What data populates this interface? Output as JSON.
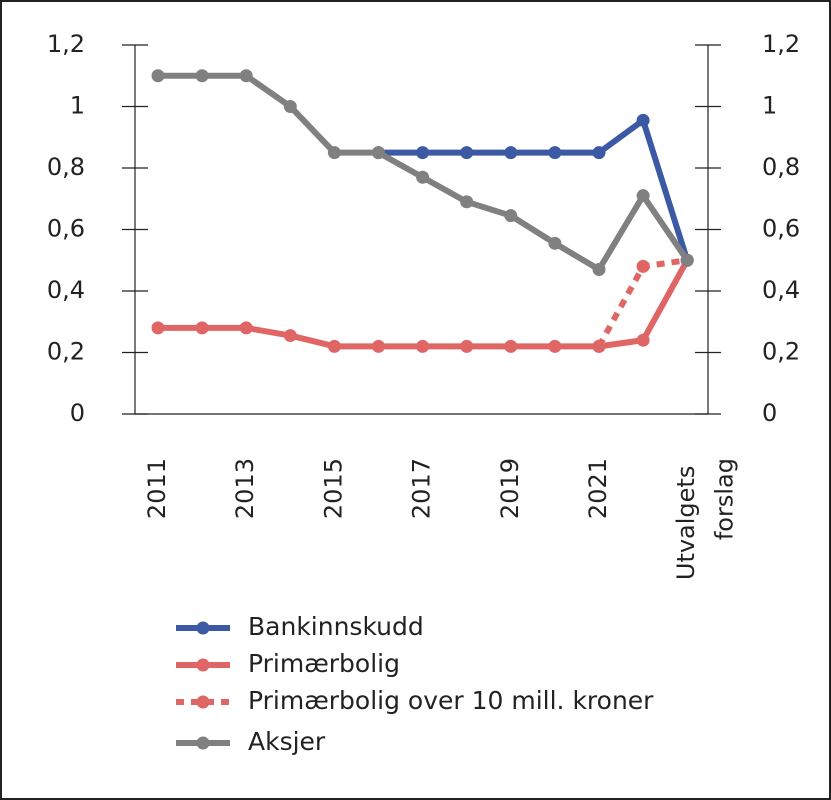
{
  "chart_data": {
    "type": "line",
    "categories": [
      "2011",
      null,
      "2013",
      null,
      "2015",
      null,
      "2017",
      null,
      "2019",
      null,
      "2021",
      null,
      "Utvalgets forslag"
    ],
    "series": [
      {
        "name": "Bankinnskudd",
        "color": "#3b5aa3",
        "dashed": false,
        "values": [
          null,
          null,
          null,
          null,
          null,
          0.85,
          0.85,
          0.85,
          0.85,
          0.85,
          0.85,
          0.955,
          0.5
        ]
      },
      {
        "name": "Primærbolig",
        "color": "#e06666",
        "dashed": false,
        "values": [
          0.28,
          0.28,
          0.28,
          0.255,
          0.22,
          0.22,
          0.22,
          0.22,
          0.22,
          0.22,
          0.22,
          0.24,
          0.5
        ]
      },
      {
        "name": "Primærbolig over 10 mill. kroner",
        "color": "#e06666",
        "dashed": true,
        "values": [
          null,
          null,
          null,
          null,
          null,
          null,
          null,
          null,
          null,
          null,
          0.22,
          0.48,
          0.5
        ]
      },
      {
        "name": "Aksjer",
        "color": "#808080",
        "dashed": false,
        "values": [
          1.1,
          1.1,
          1.1,
          1.0,
          0.85,
          0.85,
          0.77,
          0.69,
          0.645,
          0.555,
          0.47,
          0.71,
          0.5
        ]
      }
    ],
    "ylim": [
      0,
      1.2
    ],
    "yticks": [
      0,
      {
        "value": 0.2,
        "label": "0,2"
      },
      {
        "value": 0.4,
        "label": "0,4"
      },
      {
        "value": 0.6,
        "label": "0,6"
      },
      {
        "value": 0.8,
        "label": "0,8"
      },
      1,
      {
        "value": 1.2,
        "label": "1,2"
      }
    ],
    "y2lim": [
      0,
      1.2
    ],
    "y2ticks": [
      0,
      {
        "value": 0.2,
        "label": "0,2"
      },
      {
        "value": 0.4,
        "label": "0,4"
      },
      {
        "value": 0.6,
        "label": "0,6"
      },
      {
        "value": 0.8,
        "label": "0,8"
      },
      1,
      {
        "value": 1.2,
        "label": "1,2"
      }
    ],
    "legend": "bottom-left"
  }
}
